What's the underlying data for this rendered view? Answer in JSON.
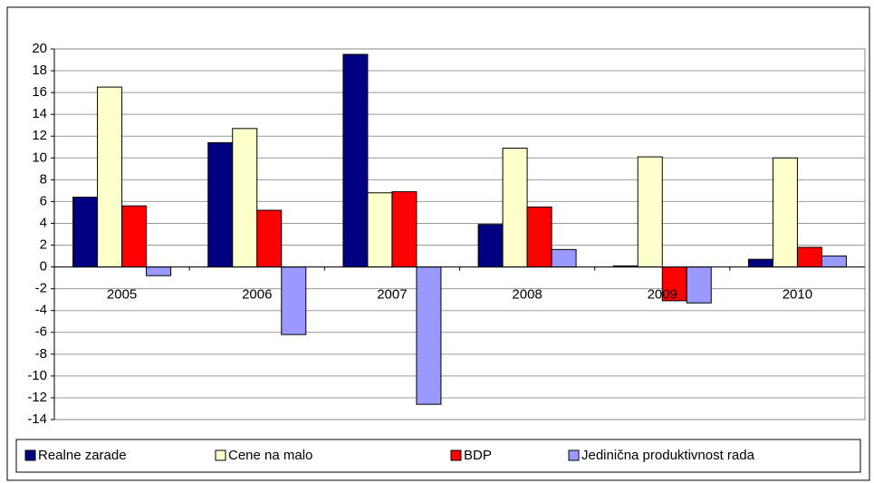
{
  "chart_data": {
    "type": "bar",
    "categories": [
      "2005",
      "2006",
      "2007",
      "2008",
      "2009",
      "2010"
    ],
    "series": [
      {
        "name": "Realne zarade",
        "color": "#000080",
        "values": [
          6.4,
          11.4,
          19.5,
          3.9,
          0.1,
          0.7
        ]
      },
      {
        "name": "Cene na malo",
        "color": "#ffffcc",
        "values": [
          16.5,
          12.7,
          6.8,
          10.9,
          10.1,
          10.0
        ]
      },
      {
        "name": "BDP",
        "color": "#ff0000",
        "values": [
          5.6,
          5.2,
          6.9,
          5.5,
          -3.1,
          1.8
        ]
      },
      {
        "name": "Jedinična produktivnost rada",
        "color": "#9999ff",
        "values": [
          -0.8,
          -6.2,
          -12.6,
          1.6,
          -3.3,
          1.0
        ]
      }
    ],
    "ylim": [
      -14,
      20
    ],
    "yticks": [
      -14,
      -12,
      -10,
      -8,
      -6,
      -4,
      -2,
      0,
      2,
      4,
      6,
      8,
      10,
      12,
      14,
      16,
      18,
      20
    ],
    "grid": true,
    "legend": "bottom"
  }
}
